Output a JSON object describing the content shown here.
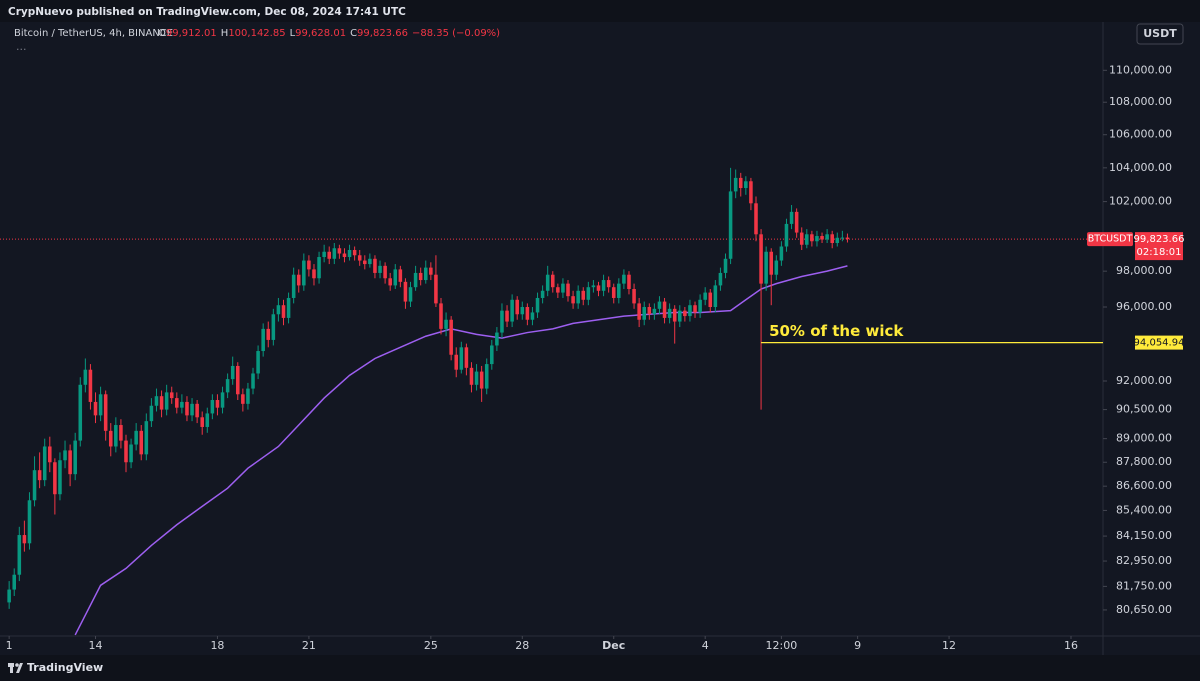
{
  "header": {
    "published": "CrypNuevo published on TradingView.com, Dec 08, 2024 17:41 UTC",
    "symbol": "Bitcoin / TetherUS, 4h, BINANCE",
    "ohlc": [
      {
        "label": "O",
        "value": "99,912.01"
      },
      {
        "label": "H",
        "value": "100,142.85"
      },
      {
        "label": "L",
        "value": "99,628.01"
      },
      {
        "label": "C",
        "value": "99,823.66"
      }
    ],
    "change": "−88.35 (−0.09%)",
    "more": "...",
    "currency": "USDT"
  },
  "footer": {
    "brand": "TradingView"
  },
  "chart_data": {
    "type": "candlestick",
    "log_scale": true,
    "up_color": "#089981",
    "down_color": "#f23645",
    "xlim": [
      -0.8,
      216.3
    ],
    "ylim": [
      79450,
      113100
    ],
    "xticks": [
      {
        "value": 1,
        "label": "1"
      },
      {
        "value": 18,
        "label": "14"
      },
      {
        "value": 42,
        "label": "18"
      },
      {
        "value": 60,
        "label": "21"
      },
      {
        "value": 84,
        "label": "25"
      },
      {
        "value": 102,
        "label": "28"
      },
      {
        "value": 120,
        "label": "Dec"
      },
      {
        "value": 138,
        "label": "4"
      },
      {
        "value": 153,
        "label": "12:00"
      },
      {
        "value": 168,
        "label": "9"
      },
      {
        "value": 186,
        "label": "12"
      },
      {
        "value": 210,
        "label": "16"
      }
    ],
    "yticks": [
      {
        "value": 110000,
        "label": "110,000.00"
      },
      {
        "value": 108000,
        "label": "108,000.00"
      },
      {
        "value": 106000,
        "label": "106,000.00"
      },
      {
        "value": 104000,
        "label": "104,000.00"
      },
      {
        "value": 102000,
        "label": "102,000.00"
      },
      {
        "value": 98000,
        "label": "98,000.00"
      },
      {
        "value": 96000,
        "label": "96,000.00"
      },
      {
        "value": 92000,
        "label": "92,000.00"
      },
      {
        "value": 90500,
        "label": "90,500.00"
      },
      {
        "value": 89000,
        "label": "89,000.00"
      },
      {
        "value": 87800,
        "label": "87,800.00"
      },
      {
        "value": 86600,
        "label": "86,600.00"
      },
      {
        "value": 85400,
        "label": "85,400.00"
      },
      {
        "value": 84150,
        "label": "84,150.00"
      },
      {
        "value": 82950,
        "label": "82,950.00"
      },
      {
        "value": 81750,
        "label": "81,750.00"
      },
      {
        "value": 80650,
        "label": "80,650.00"
      }
    ],
    "candles": {
      "name": "BTCUSDT",
      "x": [
        1,
        2,
        3,
        4,
        5,
        6,
        7,
        8,
        9,
        10,
        11,
        12,
        13,
        14,
        15,
        16,
        17,
        18,
        19,
        20,
        21,
        22,
        23,
        24,
        25,
        26,
        27,
        28,
        29,
        30,
        31,
        32,
        33,
        34,
        35,
        36,
        37,
        38,
        39,
        40,
        41,
        42,
        43,
        44,
        45,
        46,
        47,
        48,
        49,
        50,
        51,
        52,
        53,
        54,
        55,
        56,
        57,
        58,
        59,
        60,
        61,
        62,
        63,
        64,
        65,
        66,
        67,
        68,
        69,
        70,
        71,
        72,
        73,
        74,
        75,
        76,
        77,
        78,
        79,
        80,
        81,
        82,
        83,
        84,
        85,
        86,
        87,
        88,
        89,
        90,
        91,
        92,
        93,
        94,
        95,
        96,
        97,
        98,
        99,
        100,
        101,
        102,
        103,
        104,
        105,
        106,
        107,
        108,
        109,
        110,
        111,
        112,
        113,
        114,
        115,
        116,
        117,
        118,
        119,
        120,
        121,
        122,
        123,
        124,
        125,
        126,
        127,
        128,
        129,
        130,
        131,
        132,
        133,
        134,
        135,
        136,
        137,
        138,
        139,
        140,
        141,
        142,
        143,
        144,
        145,
        146,
        147,
        148,
        149,
        150,
        151,
        152,
        153,
        154,
        155,
        156,
        157,
        158,
        159,
        160,
        161,
        162,
        163,
        164,
        165,
        166
      ],
      "open": [
        81000,
        81600,
        82300,
        84200,
        83800,
        85900,
        87400,
        86900,
        88600,
        87800,
        86200,
        87900,
        88400,
        87200,
        88900,
        91800,
        92600,
        90900,
        90200,
        91300,
        89400,
        88600,
        89700,
        88900,
        87800,
        88700,
        89400,
        88200,
        89900,
        90700,
        91200,
        90500,
        91400,
        91100,
        90600,
        90900,
        90200,
        90800,
        90100,
        89600,
        90300,
        91000,
        90600,
        91400,
        92100,
        92800,
        91300,
        90800,
        91600,
        92400,
        93600,
        94800,
        94200,
        95600,
        96100,
        95400,
        96500,
        97800,
        97200,
        98600,
        98100,
        97600,
        98800,
        99100,
        98700,
        99300,
        99000,
        98800,
        99200,
        98900,
        98600,
        98400,
        98700,
        97900,
        98300,
        97600,
        97200,
        98100,
        97400,
        96300,
        97100,
        97900,
        97500,
        98200,
        97800,
        96200,
        94800,
        95300,
        93400,
        92600,
        93800,
        92700,
        91800,
        92500,
        91600,
        92900,
        93900,
        94600,
        95800,
        95200,
        96400,
        95600,
        96000,
        95300,
        95700,
        96500,
        96900,
        97800,
        97100,
        96800,
        97300,
        96600,
        96200,
        96900,
        96400,
        97100,
        97200,
        96900,
        97500,
        97100,
        96500,
        97300,
        97800,
        97000,
        96200,
        95300,
        96000,
        95600,
        95900,
        96300,
        95400,
        95900,
        95200,
        95800,
        95500,
        96100,
        95700,
        96400,
        96800,
        96000,
        97200,
        97900,
        98700,
        102600,
        103400,
        102800,
        103200,
        101900,
        100100,
        97300,
        99100,
        97800,
        98600,
        99400,
        100700,
        101400,
        100200,
        99500,
        100100,
        99700,
        100000,
        99800,
        100100,
        99600,
        99900,
        99912.01
      ],
      "high": [
        82000,
        82600,
        84600,
        84900,
        86300,
        88100,
        88300,
        89000,
        89100,
        88000,
        88300,
        88900,
        88700,
        89300,
        92200,
        93200,
        92900,
        91400,
        91700,
        91500,
        89800,
        90100,
        90000,
        89200,
        89000,
        89800,
        89700,
        90300,
        91100,
        91600,
        91500,
        91800,
        91700,
        91400,
        91300,
        91200,
        91100,
        91000,
        90400,
        90600,
        91300,
        91300,
        91700,
        92400,
        93300,
        93000,
        91600,
        91900,
        92700,
        93900,
        95100,
        95200,
        95900,
        96500,
        96400,
        96800,
        98200,
        98100,
        99000,
        98900,
        98400,
        99100,
        99500,
        99400,
        99600,
        99500,
        99300,
        99500,
        99400,
        99200,
        98900,
        99000,
        98900,
        98600,
        98500,
        97900,
        98400,
        98300,
        97600,
        97400,
        98300,
        98200,
        98600,
        98500,
        98900,
        96500,
        95700,
        95500,
        93800,
        94100,
        94000,
        93000,
        92900,
        92800,
        93200,
        94200,
        94900,
        96200,
        96100,
        96700,
        96600,
        96300,
        96200,
        96000,
        96800,
        97200,
        98300,
        98000,
        97300,
        97600,
        97500,
        96900,
        97200,
        97100,
        97400,
        97500,
        97400,
        97800,
        97700,
        97300,
        97600,
        98100,
        98000,
        97300,
        96500,
        96300,
        96200,
        96200,
        96600,
        96500,
        96200,
        96100,
        96100,
        96000,
        96400,
        96300,
        96700,
        97100,
        97000,
        97500,
        98200,
        99000,
        104000,
        103900,
        103700,
        103500,
        103400,
        102300,
        100400,
        99400,
        99300,
        98900,
        99700,
        101000,
        101800,
        101600,
        100500,
        100400,
        100300,
        100300,
        100200,
        100400,
        100300,
        100200,
        100300,
        100142.85
      ],
      "low": [
        80700,
        81300,
        82000,
        83400,
        83500,
        85600,
        86500,
        86600,
        87300,
        85200,
        85900,
        87500,
        86600,
        86900,
        88600,
        91400,
        90500,
        89800,
        89900,
        88900,
        88100,
        88300,
        88500,
        87300,
        87500,
        88400,
        87900,
        87900,
        89600,
        90400,
        90100,
        90200,
        90800,
        90300,
        90300,
        89900,
        89900,
        89800,
        89200,
        89300,
        90000,
        90200,
        90300,
        91100,
        91800,
        91000,
        90400,
        90500,
        91300,
        92100,
        93300,
        93800,
        93900,
        95200,
        95000,
        95100,
        96200,
        96800,
        96900,
        97700,
        97200,
        97300,
        98500,
        98400,
        98400,
        98700,
        98500,
        98600,
        98600,
        98300,
        98100,
        98200,
        97600,
        97600,
        97300,
        96900,
        97000,
        97100,
        95900,
        96000,
        96900,
        97200,
        97300,
        97500,
        96000,
        94500,
        94400,
        93100,
        92200,
        92400,
        92300,
        91400,
        91500,
        90900,
        91300,
        92600,
        93600,
        94300,
        94900,
        94900,
        95300,
        95300,
        95000,
        95000,
        95400,
        96200,
        96600,
        96800,
        96500,
        96500,
        96300,
        95900,
        95900,
        96100,
        96100,
        96800,
        96600,
        96600,
        96800,
        96200,
        96200,
        97000,
        96700,
        95900,
        94900,
        95000,
        95300,
        95300,
        95600,
        95100,
        95100,
        94000,
        94900,
        95200,
        95200,
        95400,
        95400,
        96100,
        95700,
        95700,
        96900,
        97600,
        98400,
        102200,
        102300,
        102400,
        101500,
        99700,
        90500,
        96900,
        96100,
        97500,
        98300,
        99100,
        100400,
        99900,
        99200,
        99300,
        99400,
        99400,
        99600,
        99600,
        99300,
        99400,
        99700,
        99628.01
      ],
      "close": [
        81600,
        82300,
        84200,
        83800,
        85900,
        87400,
        86900,
        88600,
        87800,
        86200,
        87900,
        88400,
        87200,
        88900,
        91800,
        92600,
        90900,
        90200,
        91300,
        89400,
        88600,
        89700,
        88900,
        87800,
        88700,
        89400,
        88200,
        89900,
        90700,
        91200,
        90500,
        91400,
        91100,
        90600,
        90900,
        90200,
        90800,
        90100,
        89600,
        90300,
        91000,
        90600,
        91400,
        92100,
        92800,
        91300,
        90800,
        91600,
        92400,
        93600,
        94800,
        94200,
        95600,
        96100,
        95400,
        96500,
        97800,
        97200,
        98600,
        98100,
        97600,
        98800,
        99100,
        98700,
        99300,
        99000,
        98800,
        99200,
        98900,
        98600,
        98400,
        98700,
        97900,
        98300,
        97600,
        97200,
        98100,
        97400,
        96300,
        97100,
        97900,
        97500,
        98200,
        97800,
        96200,
        94800,
        95300,
        93400,
        92600,
        93800,
        92700,
        91800,
        92500,
        91600,
        92900,
        93900,
        94600,
        95800,
        95200,
        96400,
        95600,
        96000,
        95300,
        95700,
        96500,
        96900,
        97800,
        97100,
        96800,
        97300,
        96600,
        96200,
        96900,
        96400,
        97100,
        97200,
        96900,
        97500,
        97100,
        96500,
        97300,
        97800,
        97000,
        96200,
        95300,
        96000,
        95600,
        95900,
        96300,
        95400,
        95900,
        95200,
        95800,
        95500,
        96100,
        95700,
        96400,
        96800,
        96000,
        97200,
        97900,
        98700,
        102600,
        103400,
        102800,
        103200,
        101900,
        100100,
        97300,
        99100,
        97800,
        98600,
        99400,
        100700,
        101400,
        100200,
        99500,
        100100,
        99700,
        100000,
        99800,
        100100,
        99600,
        99900,
        99912.01,
        99823.66
      ]
    },
    "ma": {
      "color": "#9d5ff0",
      "x": [
        14,
        19,
        24,
        29,
        34,
        39,
        44,
        48,
        54,
        58,
        63,
        68,
        73,
        78,
        83,
        88,
        93,
        98,
        103,
        108,
        112,
        117,
        122,
        127,
        132,
        137,
        143,
        146,
        149,
        152,
        157,
        162,
        166
      ],
      "values": [
        79500,
        81800,
        82600,
        83700,
        84700,
        85600,
        86500,
        87500,
        88600,
        89700,
        91100,
        92300,
        93200,
        93800,
        94400,
        94800,
        94500,
        94300,
        94600,
        94800,
        95100,
        95300,
        95500,
        95600,
        95700,
        95700,
        95800,
        96400,
        97000,
        97300,
        97700,
        98000,
        98300
      ]
    },
    "last_price": {
      "value": 99823.66,
      "label": "99,823.66",
      "symbol": "BTCUSDT",
      "countdown": "02:18:01",
      "color": "#f23645"
    },
    "level": {
      "value": 94054.94,
      "label": "94,054.94",
      "x": 149,
      "text": "50% of the wick",
      "color": "#ffeb3b"
    }
  }
}
